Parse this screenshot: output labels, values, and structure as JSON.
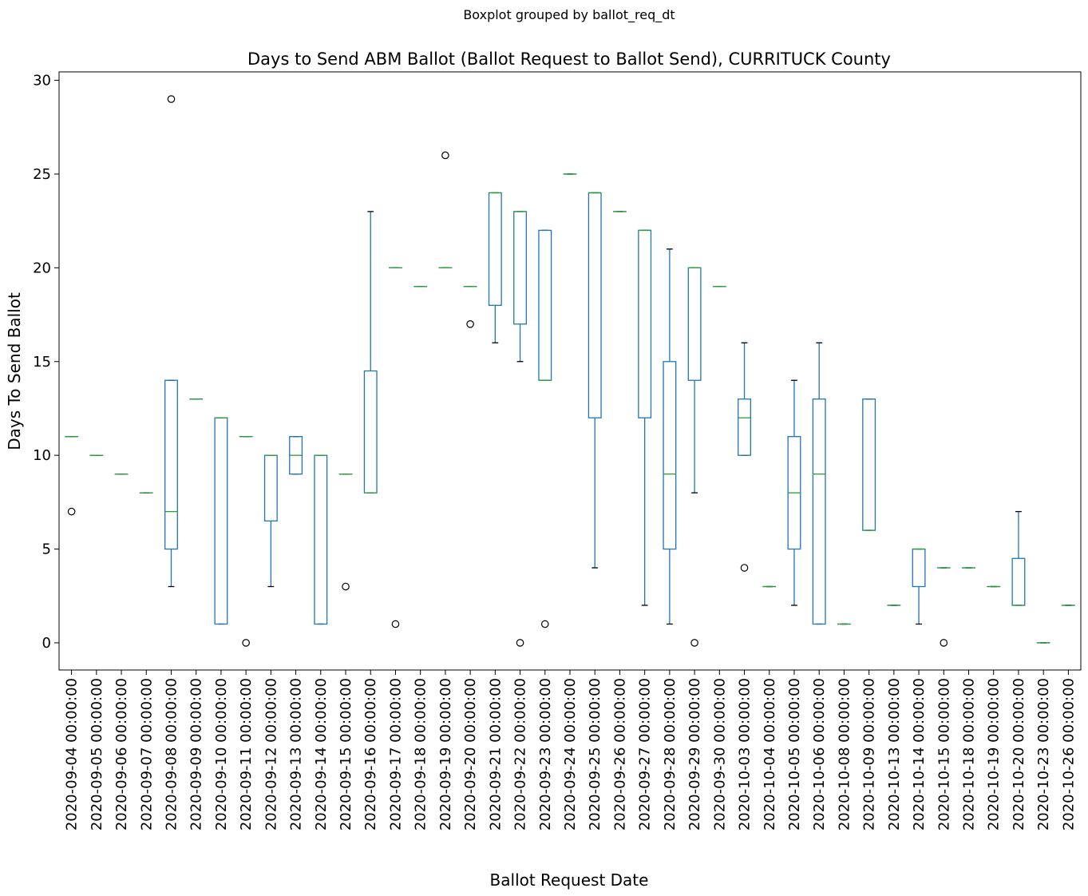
{
  "chart_data": {
    "type": "boxplot",
    "suptitle": "Boxplot grouped by ballot_req_dt",
    "title": "Days to Send ABM Ballot (Ballot Request to Ballot Send), CURRITUCK County",
    "xlabel": "Ballot Request Date",
    "ylabel": "Days To Send Ballot",
    "ylim": [
      -1.45,
      30.45
    ],
    "yticks": [
      0,
      5,
      10,
      15,
      20,
      25,
      30
    ],
    "grid": false,
    "colors": {
      "box": "#1f77b4",
      "median": "#2ca02c",
      "whisker": "#1f77b4",
      "cap": "#000000",
      "flier": "#000000"
    },
    "categories": [
      "2020-09-04 00:00:00",
      "2020-09-05 00:00:00",
      "2020-09-06 00:00:00",
      "2020-09-07 00:00:00",
      "2020-09-08 00:00:00",
      "2020-09-09 00:00:00",
      "2020-09-10 00:00:00",
      "2020-09-11 00:00:00",
      "2020-09-12 00:00:00",
      "2020-09-13 00:00:00",
      "2020-09-14 00:00:00",
      "2020-09-15 00:00:00",
      "2020-09-16 00:00:00",
      "2020-09-17 00:00:00",
      "2020-09-18 00:00:00",
      "2020-09-19 00:00:00",
      "2020-09-20 00:00:00",
      "2020-09-21 00:00:00",
      "2020-09-22 00:00:00",
      "2020-09-23 00:00:00",
      "2020-09-24 00:00:00",
      "2020-09-25 00:00:00",
      "2020-09-26 00:00:00",
      "2020-09-27 00:00:00",
      "2020-09-28 00:00:00",
      "2020-09-29 00:00:00",
      "2020-09-30 00:00:00",
      "2020-10-03 00:00:00",
      "2020-10-04 00:00:00",
      "2020-10-05 00:00:00",
      "2020-10-06 00:00:00",
      "2020-10-08 00:00:00",
      "2020-10-09 00:00:00",
      "2020-10-13 00:00:00",
      "2020-10-14 00:00:00",
      "2020-10-15 00:00:00",
      "2020-10-18 00:00:00",
      "2020-10-19 00:00:00",
      "2020-10-20 00:00:00",
      "2020-10-23 00:00:00",
      "2020-10-26 00:00:00"
    ],
    "boxes": [
      {
        "whislo": 11,
        "q1": 11,
        "med": 11,
        "q3": 11,
        "whishi": 11,
        "fliers": [
          7
        ]
      },
      {
        "whislo": 10,
        "q1": 10,
        "med": 10,
        "q3": 10,
        "whishi": 10,
        "fliers": []
      },
      {
        "whislo": 9,
        "q1": 9,
        "med": 9,
        "q3": 9,
        "whishi": 9,
        "fliers": []
      },
      {
        "whislo": 8,
        "q1": 8,
        "med": 8,
        "q3": 8,
        "whishi": 8,
        "fliers": []
      },
      {
        "whislo": 3,
        "q1": 5,
        "med": 7,
        "q3": 14,
        "whishi": 14,
        "fliers": [
          29
        ]
      },
      {
        "whislo": 13,
        "q1": 13,
        "med": 13,
        "q3": 13,
        "whishi": 13,
        "fliers": []
      },
      {
        "whislo": 1,
        "q1": 1,
        "med": 12,
        "q3": 12,
        "whishi": 12,
        "fliers": []
      },
      {
        "whislo": 11,
        "q1": 11,
        "med": 11,
        "q3": 11,
        "whishi": 11,
        "fliers": [
          0
        ]
      },
      {
        "whislo": 3,
        "q1": 6.5,
        "med": 10,
        "q3": 10,
        "whishi": 10,
        "fliers": []
      },
      {
        "whislo": 9,
        "q1": 9,
        "med": 10,
        "q3": 11,
        "whishi": 11,
        "fliers": []
      },
      {
        "whislo": 1,
        "q1": 1,
        "med": 10,
        "q3": 10,
        "whishi": 10,
        "fliers": []
      },
      {
        "whislo": 9,
        "q1": 9,
        "med": 9,
        "q3": 9,
        "whishi": 9,
        "fliers": [
          3
        ]
      },
      {
        "whislo": 8,
        "q1": 8,
        "med": 8,
        "q3": 14.5,
        "whishi": 23,
        "fliers": []
      },
      {
        "whislo": 20,
        "q1": 20,
        "med": 20,
        "q3": 20,
        "whishi": 20,
        "fliers": [
          1
        ]
      },
      {
        "whislo": 19,
        "q1": 19,
        "med": 19,
        "q3": 19,
        "whishi": 19,
        "fliers": []
      },
      {
        "whislo": 20,
        "q1": 20,
        "med": 20,
        "q3": 20,
        "whishi": 20,
        "fliers": [
          26
        ]
      },
      {
        "whislo": 19,
        "q1": 19,
        "med": 19,
        "q3": 19,
        "whishi": 19,
        "fliers": [
          17
        ]
      },
      {
        "whislo": 16,
        "q1": 18,
        "med": 24,
        "q3": 24,
        "whishi": 24,
        "fliers": []
      },
      {
        "whislo": 15,
        "q1": 17,
        "med": 23,
        "q3": 23,
        "whishi": 23,
        "fliers": [
          0
        ]
      },
      {
        "whislo": 14,
        "q1": 14,
        "med": 14,
        "q3": 22,
        "whishi": 22,
        "fliers": [
          1
        ]
      },
      {
        "whislo": 25,
        "q1": 25,
        "med": 25,
        "q3": 25,
        "whishi": 25,
        "fliers": []
      },
      {
        "whislo": 4,
        "q1": 12,
        "med": 24,
        "q3": 24,
        "whishi": 24,
        "fliers": []
      },
      {
        "whislo": 23,
        "q1": 23,
        "med": 23,
        "q3": 23,
        "whishi": 23,
        "fliers": []
      },
      {
        "whislo": 2,
        "q1": 12,
        "med": 22,
        "q3": 22,
        "whishi": 22,
        "fliers": []
      },
      {
        "whislo": 1,
        "q1": 5,
        "med": 9,
        "q3": 15,
        "whishi": 21,
        "fliers": []
      },
      {
        "whislo": 8,
        "q1": 14,
        "med": 20,
        "q3": 20,
        "whishi": 20,
        "fliers": [
          0
        ]
      },
      {
        "whislo": 19,
        "q1": 19,
        "med": 19,
        "q3": 19,
        "whishi": 19,
        "fliers": []
      },
      {
        "whislo": 10,
        "q1": 10,
        "med": 12,
        "q3": 13,
        "whishi": 16,
        "fliers": [
          4
        ]
      },
      {
        "whislo": 3,
        "q1": 3,
        "med": 3,
        "q3": 3,
        "whishi": 3,
        "fliers": []
      },
      {
        "whislo": 2,
        "q1": 5,
        "med": 8,
        "q3": 11,
        "whishi": 14,
        "fliers": []
      },
      {
        "whislo": 1,
        "q1": 1,
        "med": 9,
        "q3": 13,
        "whishi": 16,
        "fliers": []
      },
      {
        "whislo": 1,
        "q1": 1,
        "med": 1,
        "q3": 1,
        "whishi": 1,
        "fliers": []
      },
      {
        "whislo": 6,
        "q1": 6,
        "med": 6,
        "q3": 13,
        "whishi": 13,
        "fliers": []
      },
      {
        "whislo": 2,
        "q1": 2,
        "med": 2,
        "q3": 2,
        "whishi": 2,
        "fliers": []
      },
      {
        "whislo": 1,
        "q1": 3,
        "med": 5,
        "q3": 5,
        "whishi": 5,
        "fliers": []
      },
      {
        "whislo": 4,
        "q1": 4,
        "med": 4,
        "q3": 4,
        "whishi": 4,
        "fliers": [
          0
        ]
      },
      {
        "whislo": 4,
        "q1": 4,
        "med": 4,
        "q3": 4,
        "whishi": 4,
        "fliers": []
      },
      {
        "whislo": 3,
        "q1": 3,
        "med": 3,
        "q3": 3,
        "whishi": 3,
        "fliers": []
      },
      {
        "whislo": 2,
        "q1": 2,
        "med": 2,
        "q3": 4.5,
        "whishi": 7,
        "fliers": []
      },
      {
        "whislo": 0,
        "q1": 0,
        "med": 0,
        "q3": 0,
        "whishi": 0,
        "fliers": []
      },
      {
        "whislo": 2,
        "q1": 2,
        "med": 2,
        "q3": 2,
        "whishi": 2,
        "fliers": []
      }
    ]
  }
}
